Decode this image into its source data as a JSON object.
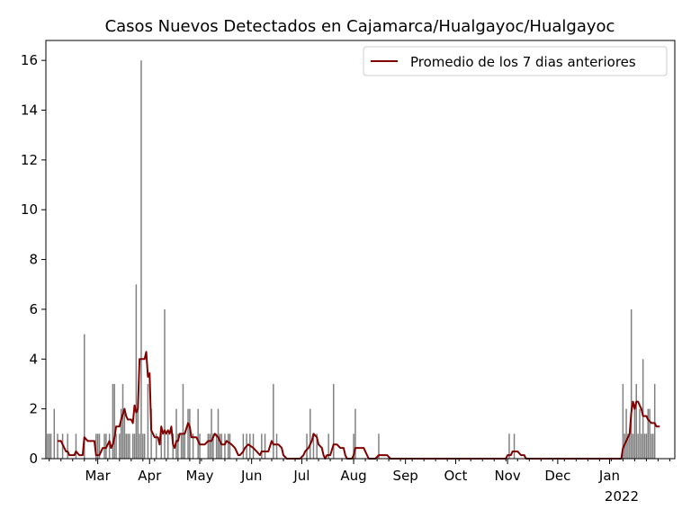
{
  "chart_data": {
    "type": "bar",
    "title": "Casos Nuevos Detectados en Cajamarca/Hualgayoc/Hualgayoc",
    "xlabel": "",
    "ylabel": "",
    "ylim": [
      0,
      16.8
    ],
    "yticks": [
      0,
      2,
      4,
      6,
      8,
      10,
      12,
      14,
      16
    ],
    "xrange": [
      "2021-01-29",
      "2022-02-09"
    ],
    "xticks": [
      {
        "label": "Mar",
        "date": "2021-03-01"
      },
      {
        "label": "Apr",
        "date": "2021-04-01"
      },
      {
        "label": "May",
        "date": "2021-05-01"
      },
      {
        "label": "Jun",
        "date": "2021-06-01"
      },
      {
        "label": "Jul",
        "date": "2021-07-01"
      },
      {
        "label": "Aug",
        "date": "2021-08-01"
      },
      {
        "label": "Sep",
        "date": "2021-09-01"
      },
      {
        "label": "Oct",
        "date": "2021-10-01"
      },
      {
        "label": "Nov",
        "date": "2021-11-01"
      },
      {
        "label": "Dec",
        "date": "2021-12-01"
      },
      {
        "label": "Jan",
        "date": "2022-01-01"
      }
    ],
    "year_label": "2022",
    "legend_position": "top-right",
    "grid": false,
    "bar_color": "#808080",
    "line_color": "#800000",
    "bars": [
      [
        "2021-01-30",
        1
      ],
      [
        "2021-01-31",
        1
      ],
      [
        "2021-02-01",
        1
      ],
      [
        "2021-02-03",
        2
      ],
      [
        "2021-02-05",
        1
      ],
      [
        "2021-02-08",
        1
      ],
      [
        "2021-02-11",
        1
      ],
      [
        "2021-02-16",
        1
      ],
      [
        "2021-02-21",
        5
      ],
      [
        "2021-02-28",
        1
      ],
      [
        "2021-03-01",
        1
      ],
      [
        "2021-03-02",
        1
      ],
      [
        "2021-03-05",
        1
      ],
      [
        "2021-03-06",
        1
      ],
      [
        "2021-03-08",
        1
      ],
      [
        "2021-03-10",
        3
      ],
      [
        "2021-03-11",
        3
      ],
      [
        "2021-03-12",
        1
      ],
      [
        "2021-03-14",
        1
      ],
      [
        "2021-03-15",
        2
      ],
      [
        "2021-03-16",
        3
      ],
      [
        "2021-03-17",
        2
      ],
      [
        "2021-03-18",
        1
      ],
      [
        "2021-03-19",
        1
      ],
      [
        "2021-03-20",
        1
      ],
      [
        "2021-03-22",
        1
      ],
      [
        "2021-03-23",
        1
      ],
      [
        "2021-03-24",
        7
      ],
      [
        "2021-03-25",
        2
      ],
      [
        "2021-03-26",
        1
      ],
      [
        "2021-03-27",
        16
      ],
      [
        "2021-03-28",
        1
      ],
      [
        "2021-03-29",
        1
      ],
      [
        "2021-03-31",
        3
      ],
      [
        "2021-04-02",
        2
      ],
      [
        "2021-04-05",
        1
      ],
      [
        "2021-04-08",
        1
      ],
      [
        "2021-04-10",
        6
      ],
      [
        "2021-04-12",
        1
      ],
      [
        "2021-04-15",
        1
      ],
      [
        "2021-04-17",
        2
      ],
      [
        "2021-04-18",
        1
      ],
      [
        "2021-04-20",
        1
      ],
      [
        "2021-04-21",
        3
      ],
      [
        "2021-04-22",
        1
      ],
      [
        "2021-04-24",
        2
      ],
      [
        "2021-04-25",
        2
      ],
      [
        "2021-04-27",
        1
      ],
      [
        "2021-04-30",
        2
      ],
      [
        "2021-05-01",
        1
      ],
      [
        "2021-05-06",
        1
      ],
      [
        "2021-05-07",
        1
      ],
      [
        "2021-05-08",
        2
      ],
      [
        "2021-05-09",
        1
      ],
      [
        "2021-05-11",
        1
      ],
      [
        "2021-05-12",
        2
      ],
      [
        "2021-05-13",
        1
      ],
      [
        "2021-05-14",
        1
      ],
      [
        "2021-05-16",
        1
      ],
      [
        "2021-05-18",
        1
      ],
      [
        "2021-05-19",
        1
      ],
      [
        "2021-05-27",
        1
      ],
      [
        "2021-05-29",
        1
      ],
      [
        "2021-05-31",
        1
      ],
      [
        "2021-06-02",
        1
      ],
      [
        "2021-06-07",
        1
      ],
      [
        "2021-06-09",
        1
      ],
      [
        "2021-06-14",
        3
      ],
      [
        "2021-06-16",
        1
      ],
      [
        "2021-07-04",
        1
      ],
      [
        "2021-07-06",
        2
      ],
      [
        "2021-07-08",
        1
      ],
      [
        "2021-07-10",
        1
      ],
      [
        "2021-07-17",
        1
      ],
      [
        "2021-07-20",
        3
      ],
      [
        "2021-08-01",
        1
      ],
      [
        "2021-08-02",
        2
      ],
      [
        "2021-08-16",
        1
      ],
      [
        "2021-11-02",
        1
      ],
      [
        "2021-11-05",
        1
      ],
      [
        "2022-01-09",
        3
      ],
      [
        "2022-01-10",
        1
      ],
      [
        "2022-01-11",
        2
      ],
      [
        "2022-01-12",
        1
      ],
      [
        "2022-01-13",
        1
      ],
      [
        "2022-01-14",
        6
      ],
      [
        "2022-01-15",
        1
      ],
      [
        "2022-01-16",
        2
      ],
      [
        "2022-01-17",
        3
      ],
      [
        "2022-01-18",
        1
      ],
      [
        "2022-01-19",
        2
      ],
      [
        "2022-01-20",
        1
      ],
      [
        "2022-01-21",
        4
      ],
      [
        "2022-01-22",
        1
      ],
      [
        "2022-01-23",
        1
      ],
      [
        "2022-01-24",
        2
      ],
      [
        "2022-01-25",
        2
      ],
      [
        "2022-01-26",
        1
      ],
      [
        "2022-01-27",
        1
      ],
      [
        "2022-01-28",
        3
      ]
    ],
    "series": [
      {
        "name": "Promedio de los 7 dias anteriores",
        "points": [
          [
            "2021-02-05",
            0.71
          ],
          [
            "2021-02-07",
            0.71
          ],
          [
            "2021-02-09",
            0.43
          ],
          [
            "2021-02-10",
            0.29
          ],
          [
            "2021-02-11",
            0.29
          ],
          [
            "2021-02-12",
            0.14
          ],
          [
            "2021-02-13",
            0.14
          ],
          [
            "2021-02-15",
            0.14
          ],
          [
            "2021-02-16",
            0.29
          ],
          [
            "2021-02-18",
            0.14
          ],
          [
            "2021-02-20",
            0.14
          ],
          [
            "2021-02-21",
            0.86
          ],
          [
            "2021-02-23",
            0.71
          ],
          [
            "2021-02-27",
            0.71
          ],
          [
            "2021-02-28",
            0.14
          ],
          [
            "2021-03-02",
            0.14
          ],
          [
            "2021-03-04",
            0.43
          ],
          [
            "2021-03-06",
            0.43
          ],
          [
            "2021-03-08",
            0.71
          ],
          [
            "2021-03-09",
            0.43
          ],
          [
            "2021-03-10",
            0.57
          ],
          [
            "2021-03-11",
            0.86
          ],
          [
            "2021-03-12",
            1.29
          ],
          [
            "2021-03-14",
            1.29
          ],
          [
            "2021-03-15",
            1.57
          ],
          [
            "2021-03-17",
            2.0
          ],
          [
            "2021-03-18",
            1.71
          ],
          [
            "2021-03-19",
            1.57
          ],
          [
            "2021-03-21",
            1.57
          ],
          [
            "2021-03-22",
            1.43
          ],
          [
            "2021-03-23",
            2.14
          ],
          [
            "2021-03-24",
            1.86
          ],
          [
            "2021-03-25",
            2.0
          ],
          [
            "2021-03-26",
            4.0
          ],
          [
            "2021-03-29",
            4.0
          ],
          [
            "2021-03-30",
            4.29
          ],
          [
            "2021-03-31",
            3.29
          ],
          [
            "2021-04-01",
            3.43
          ],
          [
            "2021-04-02",
            1.14
          ],
          [
            "2021-04-04",
            0.86
          ],
          [
            "2021-04-06",
            0.86
          ],
          [
            "2021-04-07",
            0.57
          ],
          [
            "2021-04-08",
            1.29
          ],
          [
            "2021-04-09",
            1.0
          ],
          [
            "2021-04-10",
            1.14
          ],
          [
            "2021-04-11",
            1.0
          ],
          [
            "2021-04-12",
            1.14
          ],
          [
            "2021-04-13",
            1.0
          ],
          [
            "2021-04-14",
            1.29
          ],
          [
            "2021-04-15",
            0.57
          ],
          [
            "2021-04-16",
            0.43
          ],
          [
            "2021-04-17",
            0.71
          ],
          [
            "2021-04-18",
            0.71
          ],
          [
            "2021-04-19",
            1.0
          ],
          [
            "2021-04-22",
            1.0
          ],
          [
            "2021-04-24",
            1.43
          ],
          [
            "2021-04-25",
            1.29
          ],
          [
            "2021-04-26",
            0.86
          ],
          [
            "2021-04-29",
            0.86
          ],
          [
            "2021-05-01",
            0.57
          ],
          [
            "2021-05-04",
            0.57
          ],
          [
            "2021-05-06",
            0.71
          ],
          [
            "2021-05-08",
            0.71
          ],
          [
            "2021-05-09",
            0.86
          ],
          [
            "2021-05-10",
            1.0
          ],
          [
            "2021-05-12",
            0.86
          ],
          [
            "2021-05-13",
            0.71
          ],
          [
            "2021-05-14",
            0.57
          ],
          [
            "2021-05-16",
            0.57
          ],
          [
            "2021-05-17",
            0.71
          ],
          [
            "2021-05-20",
            0.57
          ],
          [
            "2021-05-22",
            0.43
          ],
          [
            "2021-05-23",
            0.29
          ],
          [
            "2021-05-24",
            0.14
          ],
          [
            "2021-05-25",
            0.14
          ],
          [
            "2021-05-27",
            0.29
          ],
          [
            "2021-05-28",
            0.43
          ],
          [
            "2021-05-30",
            0.57
          ],
          [
            "2021-06-02",
            0.43
          ],
          [
            "2021-06-04",
            0.29
          ],
          [
            "2021-06-06",
            0.14
          ],
          [
            "2021-06-07",
            0.29
          ],
          [
            "2021-06-09",
            0.29
          ],
          [
            "2021-06-11",
            0.29
          ],
          [
            "2021-06-13",
            0.71
          ],
          [
            "2021-06-14",
            0.57
          ],
          [
            "2021-06-15",
            0.57
          ],
          [
            "2021-06-17",
            0.57
          ],
          [
            "2021-06-19",
            0.43
          ],
          [
            "2021-06-20",
            0.14
          ],
          [
            "2021-06-22",
            0.0
          ],
          [
            "2021-06-30",
            0.0
          ],
          [
            "2021-07-02",
            0.14
          ],
          [
            "2021-07-03",
            0.29
          ],
          [
            "2021-07-05",
            0.43
          ],
          [
            "2021-07-07",
            0.71
          ],
          [
            "2021-07-08",
            1.0
          ],
          [
            "2021-07-10",
            0.86
          ],
          [
            "2021-07-11",
            0.57
          ],
          [
            "2021-07-13",
            0.43
          ],
          [
            "2021-07-14",
            0.14
          ],
          [
            "2021-07-15",
            0.0
          ],
          [
            "2021-07-16",
            0.14
          ],
          [
            "2021-07-18",
            0.14
          ],
          [
            "2021-07-20",
            0.57
          ],
          [
            "2021-07-22",
            0.57
          ],
          [
            "2021-07-24",
            0.43
          ],
          [
            "2021-07-26",
            0.43
          ],
          [
            "2021-07-27",
            0.14
          ],
          [
            "2021-07-28",
            0.0
          ],
          [
            "2021-07-31",
            0.0
          ],
          [
            "2021-08-01",
            0.14
          ],
          [
            "2021-08-02",
            0.43
          ],
          [
            "2021-08-07",
            0.43
          ],
          [
            "2021-08-09",
            0.14
          ],
          [
            "2021-08-10",
            0.0
          ],
          [
            "2021-08-14",
            0.0
          ],
          [
            "2021-08-16",
            0.14
          ],
          [
            "2021-08-21",
            0.14
          ],
          [
            "2021-08-23",
            0.0
          ],
          [
            "2021-10-31",
            0.0
          ],
          [
            "2021-11-01",
            0.14
          ],
          [
            "2021-11-03",
            0.14
          ],
          [
            "2021-11-04",
            0.29
          ],
          [
            "2021-11-07",
            0.29
          ],
          [
            "2021-11-09",
            0.14
          ],
          [
            "2021-11-11",
            0.14
          ],
          [
            "2021-11-12",
            0.0
          ],
          [
            "2022-01-08",
            0.0
          ],
          [
            "2022-01-09",
            0.43
          ],
          [
            "2022-01-10",
            0.57
          ],
          [
            "2022-01-12",
            0.86
          ],
          [
            "2022-01-13",
            1.0
          ],
          [
            "2022-01-14",
            1.86
          ],
          [
            "2022-01-15",
            2.29
          ],
          [
            "2022-01-16",
            2.0
          ],
          [
            "2022-01-17",
            2.29
          ],
          [
            "2022-01-18",
            2.29
          ],
          [
            "2022-01-19",
            2.14
          ],
          [
            "2022-01-20",
            2.0
          ],
          [
            "2022-01-21",
            1.71
          ],
          [
            "2022-01-23",
            1.71
          ],
          [
            "2022-01-24",
            1.57
          ],
          [
            "2022-01-26",
            1.43
          ],
          [
            "2022-01-28",
            1.43
          ],
          [
            "2022-01-29",
            1.29
          ],
          [
            "2022-01-30",
            1.29
          ],
          [
            "2022-01-31",
            1.29
          ]
        ]
      }
    ]
  }
}
